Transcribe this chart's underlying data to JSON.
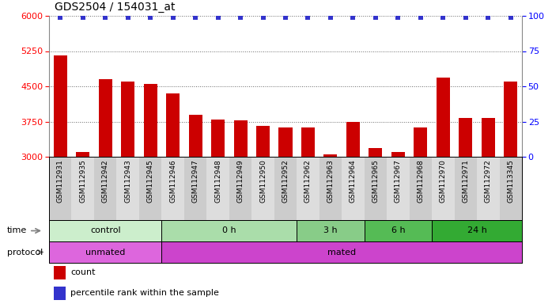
{
  "title": "GDS2504 / 154031_at",
  "samples": [
    "GSM112931",
    "GSM112935",
    "GSM112942",
    "GSM112943",
    "GSM112945",
    "GSM112946",
    "GSM112947",
    "GSM112948",
    "GSM112949",
    "GSM112950",
    "GSM112952",
    "GSM112962",
    "GSM112963",
    "GSM112964",
    "GSM112965",
    "GSM112967",
    "GSM112968",
    "GSM112970",
    "GSM112971",
    "GSM112972",
    "GSM113345"
  ],
  "counts": [
    5150,
    3100,
    4650,
    4600,
    4550,
    4350,
    3900,
    3800,
    3780,
    3650,
    3620,
    3630,
    3050,
    3750,
    3180,
    3100,
    3630,
    4680,
    3820,
    3820,
    4600
  ],
  "percentile_ranks": [
    99,
    99,
    99,
    99,
    99,
    99,
    99,
    99,
    99,
    99,
    99,
    99,
    99,
    99,
    99,
    99,
    99,
    99,
    99,
    99,
    99
  ],
  "ylim_left": [
    3000,
    6000
  ],
  "ylim_right": [
    0,
    100
  ],
  "yticks_left": [
    3000,
    3750,
    4500,
    5250,
    6000
  ],
  "yticks_right": [
    0,
    25,
    50,
    75,
    100
  ],
  "bar_color": "#cc0000",
  "dot_color": "#3333cc",
  "time_groups": [
    {
      "label": "control",
      "start": 0,
      "end": 5,
      "color": "#cceecc"
    },
    {
      "label": "0 h",
      "start": 5,
      "end": 11,
      "color": "#aaddaa"
    },
    {
      "label": "3 h",
      "start": 11,
      "end": 14,
      "color": "#88cc88"
    },
    {
      "label": "6 h",
      "start": 14,
      "end": 17,
      "color": "#55bb55"
    },
    {
      "label": "24 h",
      "start": 17,
      "end": 21,
      "color": "#33aa33"
    }
  ],
  "protocol_groups": [
    {
      "label": "unmated",
      "start": 0,
      "end": 5,
      "color": "#dd66dd"
    },
    {
      "label": "mated",
      "start": 5,
      "end": 21,
      "color": "#cc44cc"
    }
  ],
  "legend_bar_label": "count",
  "legend_dot_label": "percentile rank within the sample",
  "time_label": "time",
  "protocol_label": "protocol"
}
